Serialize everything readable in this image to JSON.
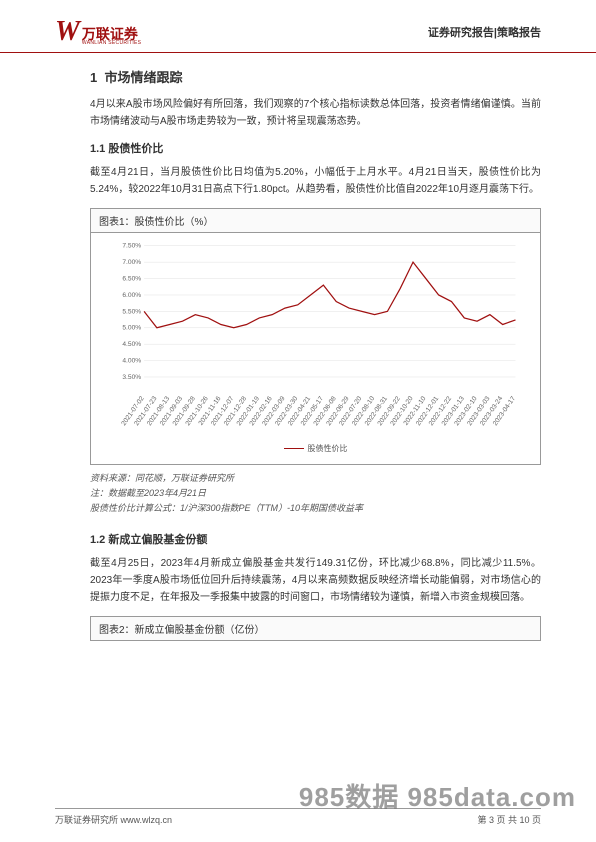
{
  "header": {
    "logo_cn": "万联证券",
    "logo_en": "WANLIAN SECURITIES",
    "right": "证券研究报告|策略报告"
  },
  "section1": {
    "num": "1",
    "title": "市场情绪跟踪",
    "para": "4月以来A股市场风险偏好有所回落，我们观察的7个核心指标读数总体回落，投资者情绪偏谨慎。当前市场情绪波动与A股市场走势较为一致，预计将呈现震荡态势。"
  },
  "section1_1": {
    "num": "1.1",
    "title": "股债性价比",
    "para": "截至4月21日，当月股债性价比日均值为5.20%，小幅低于上月水平。4月21日当天，股债性价比为5.24%，较2022年10月31日高点下行1.80pct。从趋势看，股债性价比值自2022年10月逐月震荡下行。"
  },
  "chart1": {
    "title": "图表1：股债性价比（%）",
    "type": "line",
    "line_color": "#a01010",
    "grid_color": "#e0e0e0",
    "background": "#ffffff",
    "ylim": [
      3.0,
      7.5
    ],
    "yticks": [
      "3.50%",
      "4.00%",
      "4.50%",
      "5.00%",
      "5.50%",
      "6.00%",
      "6.50%",
      "7.00%",
      "7.50%"
    ],
    "xticks": [
      "2021-07-02",
      "2021-07-23",
      "2021-08-13",
      "2021-09-03",
      "2021-09-28",
      "2021-10-26",
      "2021-11-16",
      "2021-12-07",
      "2021-12-28",
      "2022-01-19",
      "2022-02-16",
      "2022-03-09",
      "2022-03-30",
      "2022-04-21",
      "2022-05-17",
      "2022-06-08",
      "2022-06-29",
      "2022-07-20",
      "2022-08-10",
      "2022-08-31",
      "2022-09-22",
      "2022-10-20",
      "2022-11-10",
      "2022-12-01",
      "2022-12-22",
      "2023-01-13",
      "2023-02-10",
      "2023-03-03",
      "2023-03-24",
      "2023-04-17"
    ],
    "values": [
      5.5,
      5.0,
      5.1,
      5.2,
      5.4,
      5.3,
      5.1,
      5.0,
      5.1,
      5.3,
      5.4,
      5.6,
      5.7,
      6.0,
      6.3,
      5.8,
      5.6,
      5.5,
      5.4,
      5.5,
      6.2,
      7.0,
      6.5,
      6.0,
      5.8,
      5.3,
      5.2,
      5.4,
      5.1,
      5.24
    ],
    "legend": "股债性价比",
    "source": "资料来源：同花顺，万联证券研究所",
    "note1": "注：数据截至2023年4月21日",
    "note2": "股债性价比计算公式：1/沪深300指数PE（TTM）-10年期国债收益率"
  },
  "section1_2": {
    "num": "1.2",
    "title": "新成立偏股基金份额",
    "para": "截至4月25日，2023年4月新成立偏股基金共发行149.31亿份，环比减少68.8%，同比减少11.5%。2023年一季度A股市场低位回升后持续震荡，4月以来高频数据反映经济增长动能偏弱，对市场信心的提振力度不足，在年报及一季报集中披露的时间窗口，市场情绪较为谨慎，新增入市资金规模回落。"
  },
  "chart2": {
    "title": "图表2：新成立偏股基金份额（亿份）"
  },
  "footer": {
    "left": "万联证券研究所  www.wlzq.cn",
    "right": "第 3 页 共 10 页"
  },
  "watermark": "985数据  985data.com"
}
